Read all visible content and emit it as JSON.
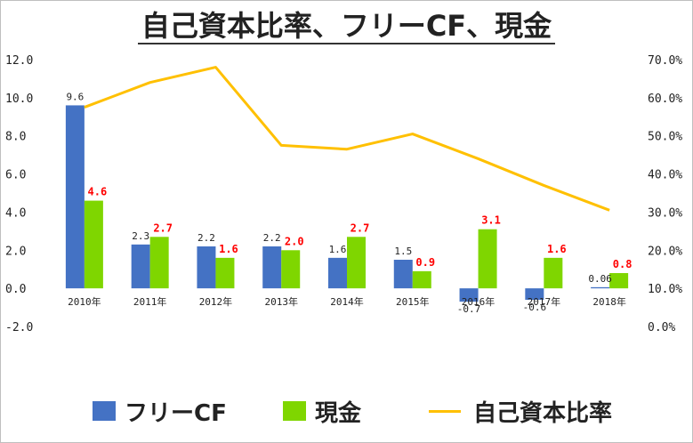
{
  "title": "自己資本比率、フリーCF、現金",
  "colors": {
    "cf": "#4472c4",
    "cash": "#7fd600",
    "ratio": "#ffc000"
  },
  "chart_data": {
    "type": "bar+line",
    "categories": [
      "2010年",
      "2011年",
      "2012年",
      "2013年",
      "2014年",
      "2015年",
      "2016年",
      "2017年",
      "2018年"
    ],
    "series": [
      {
        "name": "フリーCF",
        "type": "bar",
        "axis": "left",
        "values": [
          9.6,
          2.3,
          2.2,
          2.2,
          1.6,
          1.5,
          -0.7,
          -0.6,
          0.06
        ],
        "labels": [
          "9.6",
          "2.3",
          "2.2",
          "2.2",
          "1.6",
          "1.5",
          "-0.7",
          "-0.6",
          "0.06"
        ]
      },
      {
        "name": "現金",
        "type": "bar",
        "axis": "left",
        "values": [
          4.6,
          2.7,
          1.6,
          2.0,
          2.7,
          0.9,
          3.1,
          1.6,
          0.8
        ],
        "labels": [
          "4.6",
          "2.7",
          "1.6",
          "2.0",
          "2.7",
          "0.9",
          "3.1",
          "1.6",
          "0.8"
        ]
      },
      {
        "name": "自己資本比率",
        "type": "line",
        "axis": "right",
        "values": [
          57.5,
          64,
          68,
          47.5,
          46.5,
          50.5,
          44,
          37,
          30.5
        ]
      }
    ],
    "y_left": {
      "ticks": [
        "12.0",
        "10.0",
        "8.0",
        "6.0",
        "4.0",
        "2.0",
        "0.0",
        "-2.0"
      ],
      "ylim": [
        -2,
        12
      ]
    },
    "y_right": {
      "ticks": [
        "70.0%",
        "60.0%",
        "50.0%",
        "40.0%",
        "30.0%",
        "20.0%",
        "10.0%",
        "0.0%"
      ],
      "ylim": [
        0,
        70
      ]
    },
    "legend": [
      {
        "name": "フリーCF",
        "kind": "box",
        "color": "#4472c4"
      },
      {
        "name": "現金",
        "kind": "box",
        "color": "#7fd600"
      },
      {
        "name": "自己資本比率",
        "kind": "line",
        "color": "#ffc000"
      }
    ],
    "legend_position": "bottom",
    "grid": false
  }
}
